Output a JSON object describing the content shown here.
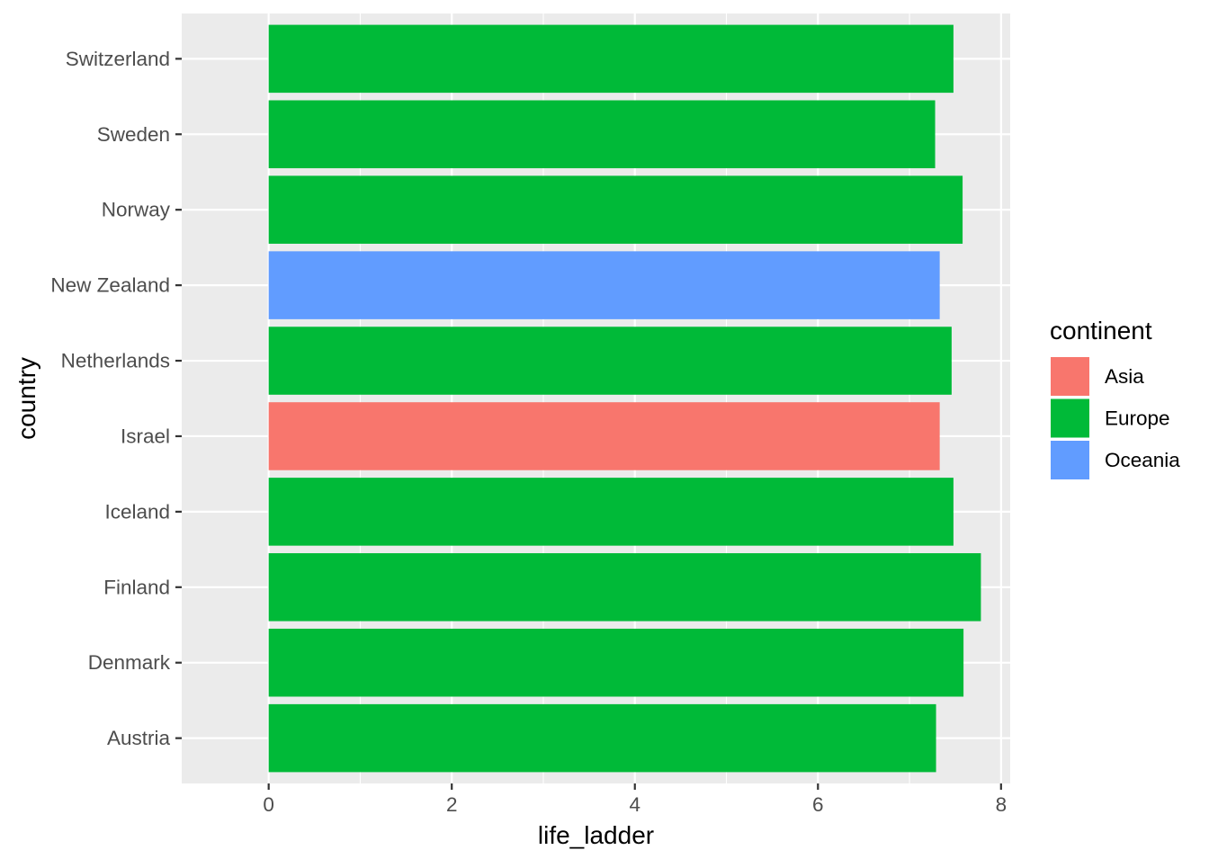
{
  "chart_data": {
    "type": "bar",
    "orientation": "horizontal",
    "xlabel": "life_ladder",
    "ylabel": "country",
    "xlim": [
      -0.95,
      8.1
    ],
    "x_ticks": [
      0,
      2,
      4,
      6,
      8
    ],
    "x_tick_labels": [
      "0",
      "2",
      "4",
      "6",
      "8"
    ],
    "grid": true,
    "legend_position": "right",
    "categories": [
      "Austria",
      "Denmark",
      "Finland",
      "Iceland",
      "Israel",
      "Netherlands",
      "New Zealand",
      "Norway",
      "Sweden",
      "Switzerland"
    ],
    "values": [
      7.29,
      7.59,
      7.78,
      7.48,
      7.33,
      7.46,
      7.33,
      7.58,
      7.28,
      7.48
    ],
    "groups": [
      "Europe",
      "Europe",
      "Europe",
      "Europe",
      "Asia",
      "Europe",
      "Oceania",
      "Europe",
      "Europe",
      "Europe"
    ],
    "legend": {
      "title": "continent",
      "entries": [
        {
          "label": "Asia",
          "color": "#F8766D"
        },
        {
          "label": "Europe",
          "color": "#00BA38"
        },
        {
          "label": "Oceania",
          "color": "#619CFF"
        }
      ]
    },
    "colors": {
      "panel_background": "#EBEBEB",
      "grid_major": "#FFFFFF",
      "axis_text": "#4D4D4D",
      "title_text": "#000000"
    }
  }
}
